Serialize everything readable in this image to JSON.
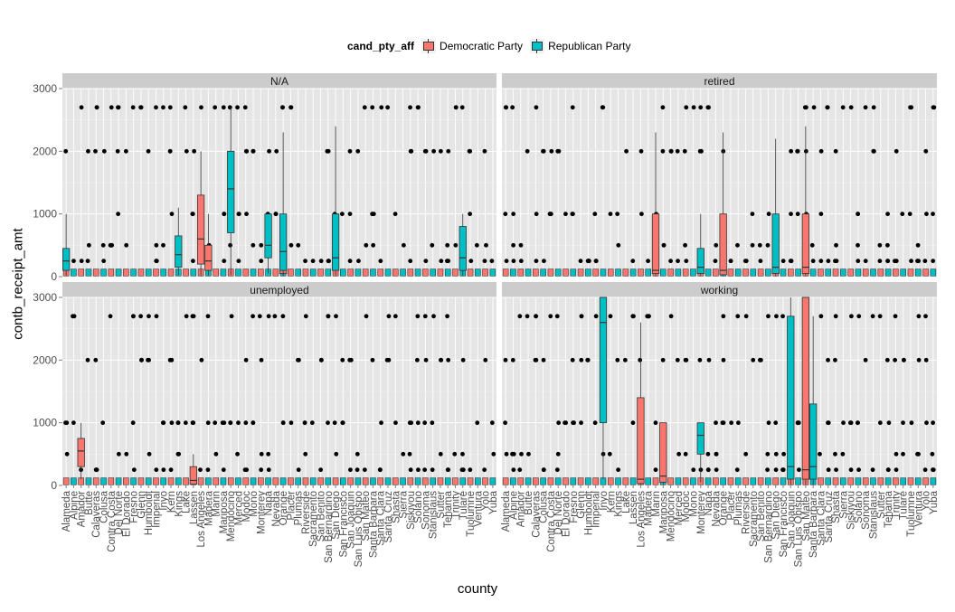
{
  "chart_data": {
    "type": "boxplot",
    "facet_by": "employment status",
    "facets": [
      {
        "label": "N/A",
        "counties": [
          "Alameda",
          "Alpine",
          "Amador",
          "Butte",
          "Calaveras",
          "Colusa",
          "Contra Costa",
          "Del Norte",
          "El Dorado",
          "Fresno",
          "Glenn",
          "Humboldt",
          "Imperial",
          "Inyo",
          "Kern",
          "Kings",
          "Lake",
          "Lassen",
          "Los Angeles",
          "Madera",
          "Marin",
          "Mariposa",
          "Mendocino",
          "Merced",
          "Modoc",
          "Mono",
          "Monterey",
          "Napa",
          "Nevada",
          "Orange",
          "Placer",
          "Plumas",
          "Riverside",
          "Sacramento",
          "San Benito",
          "San Bernardino",
          "San Diego",
          "San Francisco",
          "San Joaquin",
          "San Luis Obispo",
          "San Mateo",
          "Santa Barbara",
          "Santa Clara",
          "Santa Cruz",
          "Shasta",
          "Sierra",
          "Siskiyou",
          "Solano",
          "Sonoma",
          "Stanislaus",
          "Sutter",
          "Tehama",
          "Trinity",
          "Tulare",
          "Tuolumne",
          "Ventura",
          "Yolo",
          "Yuba"
        ]
      },
      {
        "label": "retired",
        "counties": [
          "Alameda",
          "Alpine",
          "Amador",
          "Butte",
          "Calaveras",
          "Colusa",
          "Contra Costa",
          "Del Norte",
          "El Dorado",
          "Fresno",
          "Glenn",
          "Humboldt",
          "Imperial",
          "Inyo",
          "Kern",
          "Kings",
          "Lake",
          "Lassen",
          "Los Angeles",
          "Madera",
          "Marin",
          "Mariposa",
          "Mendocino",
          "Merced",
          "Modoc",
          "Mono",
          "Monterey",
          "Napa",
          "Nevada",
          "Orange",
          "Placer",
          "Plumas",
          "Riverside",
          "Sacramento",
          "San Benito",
          "San Bernardino",
          "San Diego",
          "San Francisco",
          "San Joaquin",
          "San Luis Obispo",
          "San Mateo",
          "Santa Barbara",
          "Santa Clara",
          "Santa Cruz",
          "Shasta",
          "Sierra",
          "Siskiyou",
          "Solano",
          "Sonoma",
          "Stanislaus",
          "Sutter",
          "Tehama",
          "Trinity",
          "Tulare",
          "Tuolumne",
          "Ventura",
          "Yolo",
          "Yuba"
        ]
      },
      {
        "label": "unemployed",
        "counties": [
          "Alameda",
          "Alpine",
          "Amador",
          "Butte",
          "Calaveras",
          "Colusa",
          "Contra Costa",
          "Del Norte",
          "El Dorado",
          "Fresno",
          "Glenn",
          "Humboldt",
          "Imperial",
          "Inyo",
          "Kern",
          "Kings",
          "Lake",
          "Lassen",
          "Los Angeles",
          "Madera",
          "Marin",
          "Mariposa",
          "Mendocino",
          "Merced",
          "Modoc",
          "Mono",
          "Monterey",
          "Napa",
          "Nevada",
          "Orange",
          "Placer",
          "Plumas",
          "Riverside",
          "Sacramento",
          "San Benito",
          "San Bernardino",
          "San Diego",
          "San Francisco",
          "San Joaquin",
          "San Luis Obispo",
          "San Mateo",
          "Santa Barbara",
          "Santa Clara",
          "Santa Cruz",
          "Shasta",
          "Sierra",
          "Siskiyou",
          "Solano",
          "Sonoma",
          "Stanislaus",
          "Sutter",
          "Tehama",
          "Trinity",
          "Tulare",
          "Tuolumne",
          "Ventura",
          "Yolo",
          "Yuba"
        ]
      },
      {
        "label": "working",
        "counties": [
          "Alameda",
          "Alpine",
          "Amador",
          "Butte",
          "Calaveras",
          "Colusa",
          "Contra Costa",
          "Del Norte",
          "El Dorado",
          "Fresno",
          "Glenn",
          "Humboldt",
          "Imperial",
          "Inyo",
          "Kern",
          "Kings",
          "Lake",
          "Lassen",
          "Los Angeles",
          "Madera",
          "Marin",
          "Mariposa",
          "Mendocino",
          "Merced",
          "Modoc",
          "Mono",
          "Monterey",
          "Napa",
          "Nevada",
          "Orange",
          "Placer",
          "Plumas",
          "Riverside",
          "Sacramento",
          "San Benito",
          "San Bernardino",
          "San Diego",
          "San Francisco",
          "San Joaquin",
          "San Luis Obispo",
          "San Mateo",
          "Santa Barbara",
          "Santa Clara",
          "Santa Cruz",
          "Shasta",
          "Sierra",
          "Siskiyou",
          "Solano",
          "Sonoma",
          "Stanislaus",
          "Sutter",
          "Tehama",
          "Trinity",
          "Tulare",
          "Tuolumne",
          "Ventura",
          "Yolo",
          "Yuba"
        ]
      }
    ],
    "legend": {
      "title": "cand_pty_aff",
      "position": "top",
      "entries": [
        {
          "name": "Democratic Party",
          "color": "#F8766D"
        },
        {
          "name": "Republican Party",
          "color": "#00BFC4"
        }
      ]
    },
    "xlabel": "county",
    "ylabel": "contb_receipt_amt",
    "ylim": [
      0,
      3000
    ],
    "yticks": [
      0,
      1000,
      2000,
      3000
    ],
    "grid": true,
    "panel_background": "#e5e5e5",
    "strip_background": "#cccccc",
    "series": [
      {
        "name": "Democratic Party",
        "color": "#F8766D",
        "boxes": [
          {
            "facet": "N/A",
            "county": "Los Angeles",
            "q1": 200,
            "median": 600,
            "q3": 1300,
            "whisker_low": 5,
            "whisker_high": 2000
          },
          {
            "facet": "N/A",
            "county": "Madera",
            "q1": 100,
            "median": 250,
            "q3": 500,
            "whisker_low": 10,
            "whisker_high": 1000
          },
          {
            "facet": "N/A",
            "county": "Orange",
            "q1": 50,
            "median": 120,
            "q3": 500,
            "whisker_low": 5,
            "whisker_high": 1000
          },
          {
            "facet": "retired",
            "county": "Marin",
            "q1": 50,
            "median": 100,
            "q3": 1000,
            "whisker_low": 5,
            "whisker_high": 2300
          },
          {
            "facet": "retired",
            "county": "Orange",
            "q1": 30,
            "median": 100,
            "q3": 1000,
            "whisker_low": 5,
            "whisker_high": 2300
          },
          {
            "facet": "retired",
            "county": "San Mateo",
            "q1": 50,
            "median": 150,
            "q3": 1000,
            "whisker_low": 5,
            "whisker_high": 2400
          },
          {
            "facet": "unemployed",
            "county": "Amador",
            "q1": 300,
            "median": 550,
            "q3": 750,
            "whisker_low": 100,
            "whisker_high": 1000
          },
          {
            "facet": "unemployed",
            "county": "Lassen",
            "q1": 20,
            "median": 80,
            "q3": 300,
            "whisker_low": 5,
            "whisker_high": 500
          },
          {
            "facet": "working",
            "county": "Los Angeles",
            "q1": 30,
            "median": 100,
            "q3": 1400,
            "whisker_low": 5,
            "whisker_high": 2600
          },
          {
            "facet": "working",
            "county": "Mariposa",
            "q1": 50,
            "median": 150,
            "q3": 1000,
            "whisker_low": 5,
            "whisker_high": 1000
          },
          {
            "facet": "working",
            "county": "San Mateo",
            "q1": 100,
            "median": 250,
            "q3": 3000,
            "whisker_low": 5,
            "whisker_high": 3000
          }
        ]
      },
      {
        "name": "Republican Party",
        "color": "#00BFC4",
        "boxes": [
          {
            "facet": "N/A",
            "county": "Alameda",
            "q1": 100,
            "median": 250,
            "q3": 450,
            "whisker_low": 10,
            "whisker_high": 1000
          },
          {
            "facet": "N/A",
            "county": "Kings",
            "q1": 150,
            "median": 350,
            "q3": 650,
            "whisker_low": 20,
            "whisker_high": 1100
          },
          {
            "facet": "N/A",
            "county": "Mendocino",
            "q1": 700,
            "median": 1400,
            "q3": 2000,
            "whisker_low": 20,
            "whisker_high": 2700
          },
          {
            "facet": "N/A",
            "county": "Napa",
            "q1": 300,
            "median": 500,
            "q3": 1000,
            "whisker_low": 50,
            "whisker_high": 1000
          },
          {
            "facet": "N/A",
            "county": "Orange",
            "q1": 100,
            "median": 400,
            "q3": 1000,
            "whisker_low": 10,
            "whisker_high": 2300
          },
          {
            "facet": "N/A",
            "county": "San Diego",
            "q1": 100,
            "median": 300,
            "q3": 1000,
            "whisker_low": 10,
            "whisker_high": 2400
          },
          {
            "facet": "N/A",
            "county": "Tulare",
            "q1": 100,
            "median": 300,
            "q3": 800,
            "whisker_low": 10,
            "whisker_high": 1000
          },
          {
            "facet": "retired",
            "county": "San Diego",
            "q1": 50,
            "median": 150,
            "q3": 1000,
            "whisker_low": 5,
            "whisker_high": 2200
          },
          {
            "facet": "retired",
            "county": "Monterey",
            "q1": 50,
            "median": 150,
            "q3": 450,
            "whisker_low": 5,
            "whisker_high": 1000
          },
          {
            "facet": "working",
            "county": "Inyo",
            "q1": 1000,
            "median": 2600,
            "q3": 3000,
            "whisker_low": 100,
            "whisker_high": 3000
          },
          {
            "facet": "working",
            "county": "Monterey",
            "q1": 500,
            "median": 800,
            "q3": 1000,
            "whisker_low": 50,
            "whisker_high": 1000
          },
          {
            "facet": "working",
            "county": "San Joaquin",
            "q1": 100,
            "median": 300,
            "q3": 2700,
            "whisker_low": 5,
            "whisker_high": 3000
          },
          {
            "facet": "working",
            "county": "Santa Barbara",
            "q1": 100,
            "median": 300,
            "q3": 1300,
            "whisker_low": 5,
            "whisker_high": 2700
          }
        ]
      }
    ]
  }
}
